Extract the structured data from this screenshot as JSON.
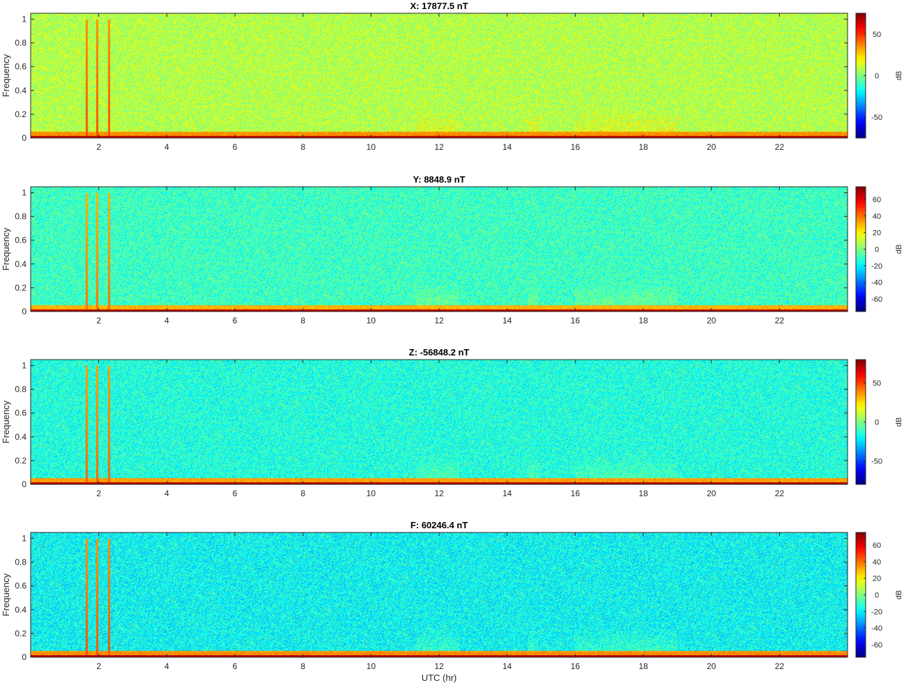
{
  "chart_data": [
    {
      "type": "heatmap",
      "title": "X: 17877.5 nT",
      "xlabel": "",
      "ylabel": "Frequency",
      "xlim": [
        0,
        24
      ],
      "ylim": [
        0,
        1.05
      ],
      "x_ticks": [
        "2",
        "4",
        "6",
        "8",
        "10",
        "12",
        "14",
        "16",
        "18",
        "20",
        "22"
      ],
      "y_ticks": [
        "0",
        "0.2",
        "0.4",
        "0.6",
        "0.8",
        "1"
      ],
      "colorbar": {
        "label": "dB",
        "range": [
          -75,
          75
        ],
        "ticks": [
          "50",
          "0",
          "-50"
        ],
        "tick_values": [
          50,
          0,
          -50
        ]
      },
      "background_level_db": 8,
      "low_band_db": 35,
      "activity_windows_hr": [
        [
          11.3,
          12.6
        ],
        [
          14.6,
          14.9
        ],
        [
          16.0,
          19.0
        ]
      ],
      "spike_lines_hr": [
        1.65,
        1.95,
        2.3
      ]
    },
    {
      "type": "heatmap",
      "title": "Y: 8848.9 nT",
      "xlabel": "",
      "ylabel": "Frequency",
      "xlim": [
        0,
        24
      ],
      "ylim": [
        0,
        1.05
      ],
      "x_ticks": [
        "2",
        "4",
        "6",
        "8",
        "10",
        "12",
        "14",
        "16",
        "18",
        "20",
        "22"
      ],
      "y_ticks": [
        "0",
        "0.2",
        "0.4",
        "0.6",
        "0.8",
        "1"
      ],
      "colorbar": {
        "label": "dB",
        "range": [
          -75,
          75
        ],
        "ticks": [
          "60",
          "40",
          "20",
          "0",
          "-20",
          "-40",
          "-60"
        ],
        "tick_values": [
          60,
          40,
          20,
          0,
          -20,
          -40,
          -60
        ]
      },
      "background_level_db": -10,
      "low_band_db": 30,
      "activity_windows_hr": [
        [
          11.3,
          12.6
        ],
        [
          14.6,
          14.9
        ],
        [
          16.0,
          19.0
        ]
      ],
      "spike_lines_hr": [
        1.65,
        1.95,
        2.3
      ]
    },
    {
      "type": "heatmap",
      "title": "Z: -56848.2 nT",
      "xlabel": "",
      "ylabel": "Frequency",
      "xlim": [
        0,
        24
      ],
      "ylim": [
        0,
        1.05
      ],
      "x_ticks": [
        "2",
        "4",
        "6",
        "8",
        "10",
        "12",
        "14",
        "16",
        "18",
        "20",
        "22"
      ],
      "y_ticks": [
        "0",
        "0.2",
        "0.4",
        "0.6",
        "0.8",
        "1"
      ],
      "colorbar": {
        "label": "dB",
        "range": [
          -80,
          80
        ],
        "ticks": [
          "50",
          "0",
          "-50"
        ],
        "tick_values": [
          50,
          0,
          -50
        ]
      },
      "background_level_db": -15,
      "low_band_db": 35,
      "activity_windows_hr": [
        [
          11.3,
          12.6
        ],
        [
          14.6,
          14.9
        ],
        [
          16.0,
          19.0
        ]
      ],
      "spike_lines_hr": [
        1.65,
        1.95,
        2.3
      ]
    },
    {
      "type": "heatmap",
      "title": "F: 60246.4 nT",
      "xlabel": "UTC (hr)",
      "ylabel": "Frequency",
      "xlim": [
        0,
        24
      ],
      "ylim": [
        0,
        1.05
      ],
      "x_ticks": [
        "2",
        "4",
        "6",
        "8",
        "10",
        "12",
        "14",
        "16",
        "18",
        "20",
        "22"
      ],
      "y_ticks": [
        "0",
        "0.2",
        "0.4",
        "0.6",
        "0.8",
        "1"
      ],
      "colorbar": {
        "label": "dB",
        "range": [
          -75,
          75
        ],
        "ticks": [
          "60",
          "40",
          "20",
          "0",
          "-20",
          "-40",
          "-60"
        ],
        "tick_values": [
          60,
          40,
          20,
          0,
          -20,
          -40,
          -60
        ]
      },
      "background_level_db": -18,
      "low_band_db": 35,
      "activity_windows_hr": [
        [
          11.3,
          12.6
        ],
        [
          14.6,
          14.9
        ],
        [
          16.0,
          19.0
        ]
      ],
      "spike_lines_hr": [
        1.65,
        1.95,
        2.3
      ]
    }
  ]
}
